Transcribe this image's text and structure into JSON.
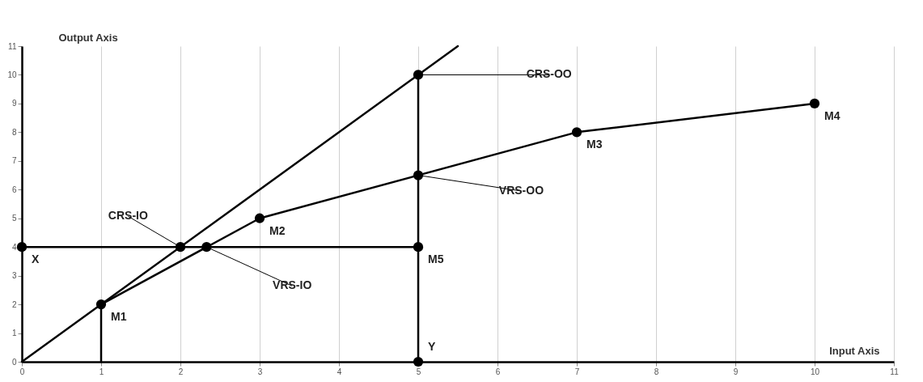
{
  "chart_data": {
    "type": "line",
    "xlabel": "Input Axis",
    "ylabel": "Output Axis",
    "xlim": [
      0,
      11
    ],
    "ylim": [
      0,
      11
    ],
    "xticks": [
      0,
      1,
      2,
      3,
      4,
      5,
      6,
      7,
      8,
      9,
      10,
      11
    ],
    "yticks": [
      0,
      1,
      2,
      3,
      4,
      5,
      6,
      7,
      8,
      9,
      10,
      11
    ],
    "grid": "x",
    "series": [
      {
        "type": "line",
        "color": "#000000",
        "x": [
          0,
          5.5
        ],
        "values": [
          0,
          11
        ]
      },
      {
        "type": "line",
        "color": "#000000",
        "x": [
          1,
          3,
          7,
          10
        ],
        "values": [
          2,
          5,
          8,
          9
        ]
      },
      {
        "type": "line",
        "color": "#000000",
        "x": [
          0,
          5
        ],
        "values": [
          4,
          4
        ]
      },
      {
        "type": "line",
        "color": "#000000",
        "x": [
          5,
          5
        ],
        "values": [
          0,
          10
        ]
      },
      {
        "type": "line",
        "color": "#000000",
        "x": [
          1,
          1
        ],
        "values": [
          0,
          2
        ]
      },
      {
        "type": "scatter",
        "marker": "circle",
        "color": "#000000",
        "x": [
          0,
          1,
          2,
          2.33,
          3,
          5,
          5,
          5,
          5,
          7,
          10
        ],
        "values": [
          4,
          2,
          4,
          4,
          5,
          0,
          4,
          6.5,
          10,
          8,
          9
        ]
      }
    ],
    "annotations": [
      {
        "text": "CRS-OO",
        "x": 5,
        "y": 10
      },
      {
        "text": "VRS-OO",
        "x": 5,
        "y": 6.5
      },
      {
        "text": "CRS-IO",
        "x": 2,
        "y": 4
      },
      {
        "text": "VRS-IO",
        "x": 2.33,
        "y": 4
      },
      {
        "text": "M1",
        "x": 1,
        "y": 2
      },
      {
        "text": "M2",
        "x": 3,
        "y": 5
      },
      {
        "text": "M3",
        "x": 7,
        "y": 8
      },
      {
        "text": "M4",
        "x": 10,
        "y": 9
      },
      {
        "text": "M5",
        "x": 5,
        "y": 4
      },
      {
        "text": "X",
        "x": 0,
        "y": 4
      },
      {
        "text": "Y",
        "x": 5,
        "y": 0
      }
    ]
  }
}
